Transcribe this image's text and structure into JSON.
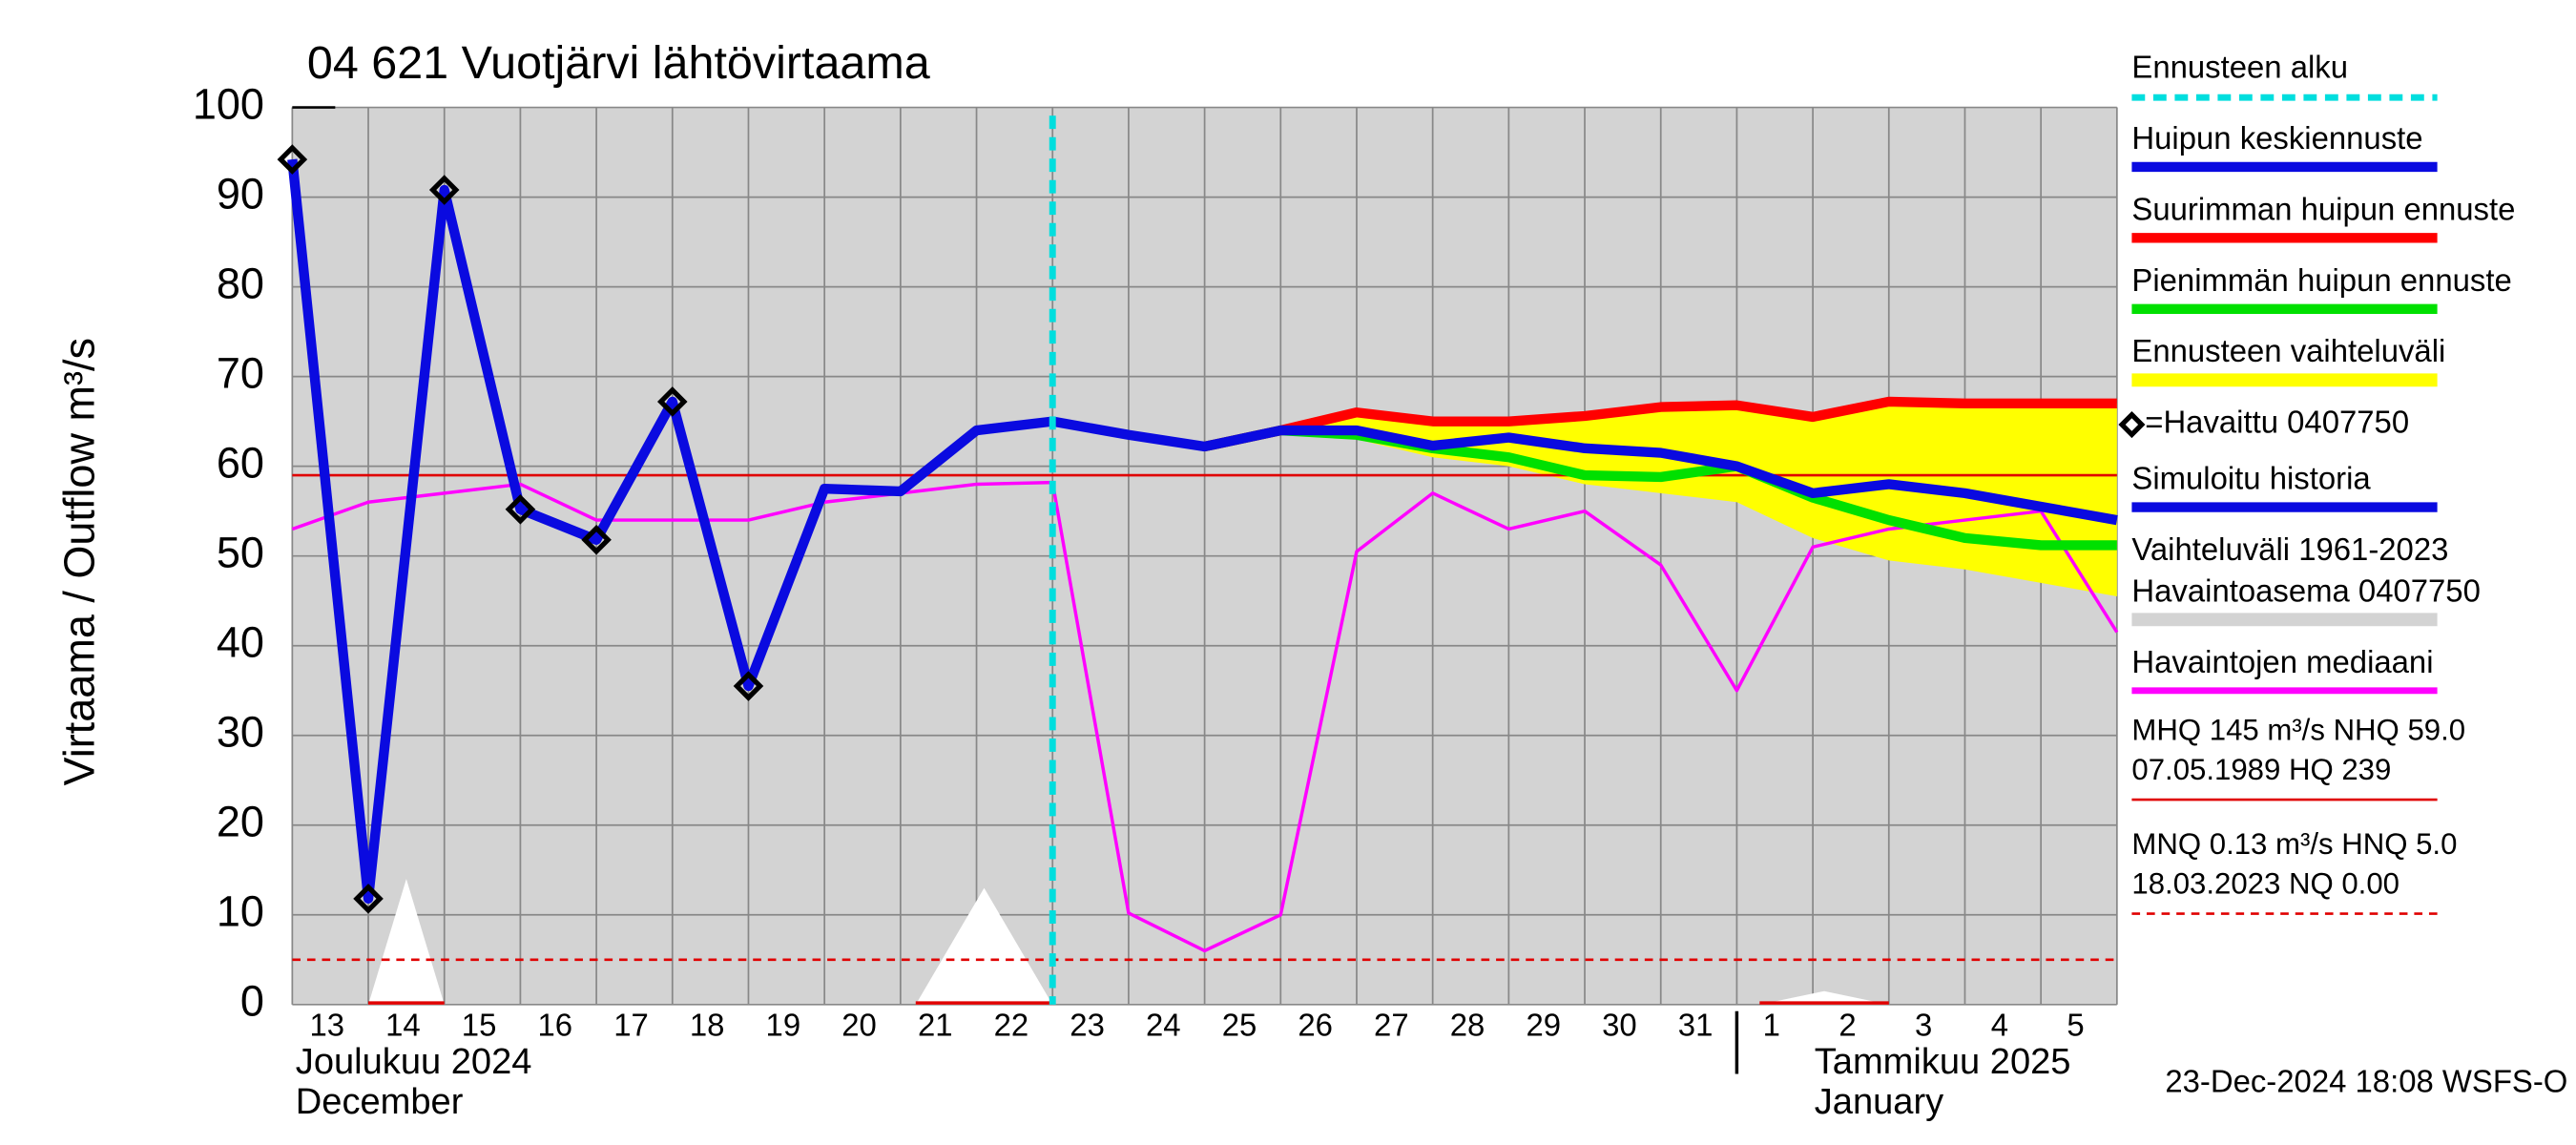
{
  "chart_data": {
    "type": "line",
    "title": "04 621 Vuotjärvi lähtövirtaama",
    "y_label": "Virtaama / Outflow    m³/s",
    "ylim": [
      0,
      100
    ],
    "yticks": [
      0,
      10,
      20,
      30,
      40,
      50,
      60,
      70,
      80,
      90,
      100
    ],
    "grid": true,
    "categories": [
      "13",
      "14",
      "15",
      "16",
      "17",
      "18",
      "19",
      "20",
      "21",
      "22",
      "23",
      "24",
      "25",
      "26",
      "27",
      "28",
      "29",
      "30",
      "31",
      "1",
      "2",
      "3",
      "4",
      "5",
      null
    ],
    "months": [
      {
        "label": "Joulukuu  2024",
        "sub": "December",
        "category": "13"
      },
      {
        "label": "Tammikuu  2025",
        "sub": "January",
        "category": "1"
      }
    ],
    "forecast_start": {
      "name": "Ennusteen alku",
      "color": "#00dede",
      "category": "23"
    },
    "series": [
      {
        "name": "Huipun keskiennuste",
        "color": "#0a0ae0",
        "width": 6,
        "values": [
          null,
          null,
          null,
          null,
          null,
          null,
          null,
          null,
          null,
          null,
          65,
          63.5,
          62.2,
          64,
          64,
          62.3,
          63.2,
          62,
          61.5,
          60,
          57,
          58,
          57,
          55.5,
          54
        ]
      },
      {
        "name": "Suurimman huipun ennuste",
        "color": "#ff0000",
        "width": 6,
        "values": [
          null,
          null,
          null,
          null,
          null,
          null,
          null,
          null,
          null,
          null,
          null,
          null,
          62.2,
          64,
          66,
          65,
          65,
          65.6,
          66.6,
          66.8,
          65.5,
          67.2,
          67,
          67,
          67
        ]
      },
      {
        "name": "Pienimmän huipun ennuste",
        "color": "#00e000",
        "width": 6,
        "values": [
          null,
          null,
          null,
          null,
          null,
          null,
          null,
          null,
          null,
          null,
          null,
          null,
          62.2,
          64,
          63.5,
          62,
          61,
          59,
          58.8,
          60,
          56.5,
          54,
          52,
          51.2,
          51.2
        ]
      },
      {
        "name": "Ennusteen vaihteluväli",
        "color": "#ffff00",
        "kind": "band",
        "values": [
          null,
          null,
          null,
          null,
          null,
          null,
          null,
          null,
          null,
          null,
          null,
          null,
          62.2,
          64,
          66,
          65,
          65,
          65.6,
          66.6,
          66.8,
          65.5,
          67.2,
          67,
          67,
          67
        ],
        "lower": [
          null,
          null,
          null,
          null,
          null,
          null,
          null,
          null,
          null,
          null,
          null,
          null,
          62,
          63.5,
          63,
          61,
          60,
          58,
          57,
          56,
          52,
          49.5,
          48.5,
          47,
          45.5
        ]
      },
      {
        "name": "=Havaittu 0407750",
        "color": "#000000",
        "kind": "marker",
        "values": [
          94.2,
          11.8,
          90.8,
          55.2,
          51.8,
          67.2,
          35.5,
          null,
          null,
          null,
          null,
          null,
          null,
          null,
          null,
          null,
          null,
          null,
          null,
          null,
          null,
          null,
          null,
          null,
          null
        ]
      },
      {
        "name": "Simuloitu historia",
        "color": "#0a0ae0",
        "width": 6,
        "values": [
          94.2,
          11.8,
          90.8,
          55.2,
          51.8,
          67.2,
          35.5,
          57.5,
          57.2,
          64,
          65,
          null,
          null,
          null,
          null,
          null,
          null,
          null,
          null,
          null,
          null,
          null,
          null,
          null,
          null
        ]
      },
      {
        "name": [
          "Vaihteluväli 1961-2023",
          " Havaintoasema 0407750"
        ],
        "color": "#d3d3d3",
        "kind": "background"
      },
      {
        "name": "Havaintojen mediaani",
        "color": "#ff00ff",
        "width": 2,
        "values": [
          53,
          56,
          57,
          58,
          54,
          54,
          54,
          56,
          57,
          58,
          58.2,
          10.2,
          6,
          10,
          50.5,
          57,
          53,
          55,
          49,
          35,
          51,
          53,
          54,
          55,
          41.5
        ]
      }
    ],
    "reference": [
      {
        "lines": [
          "MHQ  145 m³/s NHQ 59.0",
          "07.05.1989 HQ  239"
        ],
        "value": 59.0,
        "color": "#e00000",
        "dashed": false
      },
      {
        "lines": [
          "MNQ 0.13 m³/s HNQ  5.0",
          "18.03.2023 NQ 0.00"
        ],
        "value": 5.0,
        "color": "#e00000",
        "dashed": true
      }
    ],
    "timestamp": "23-Dec-2024 18:08 WSFS-O"
  }
}
